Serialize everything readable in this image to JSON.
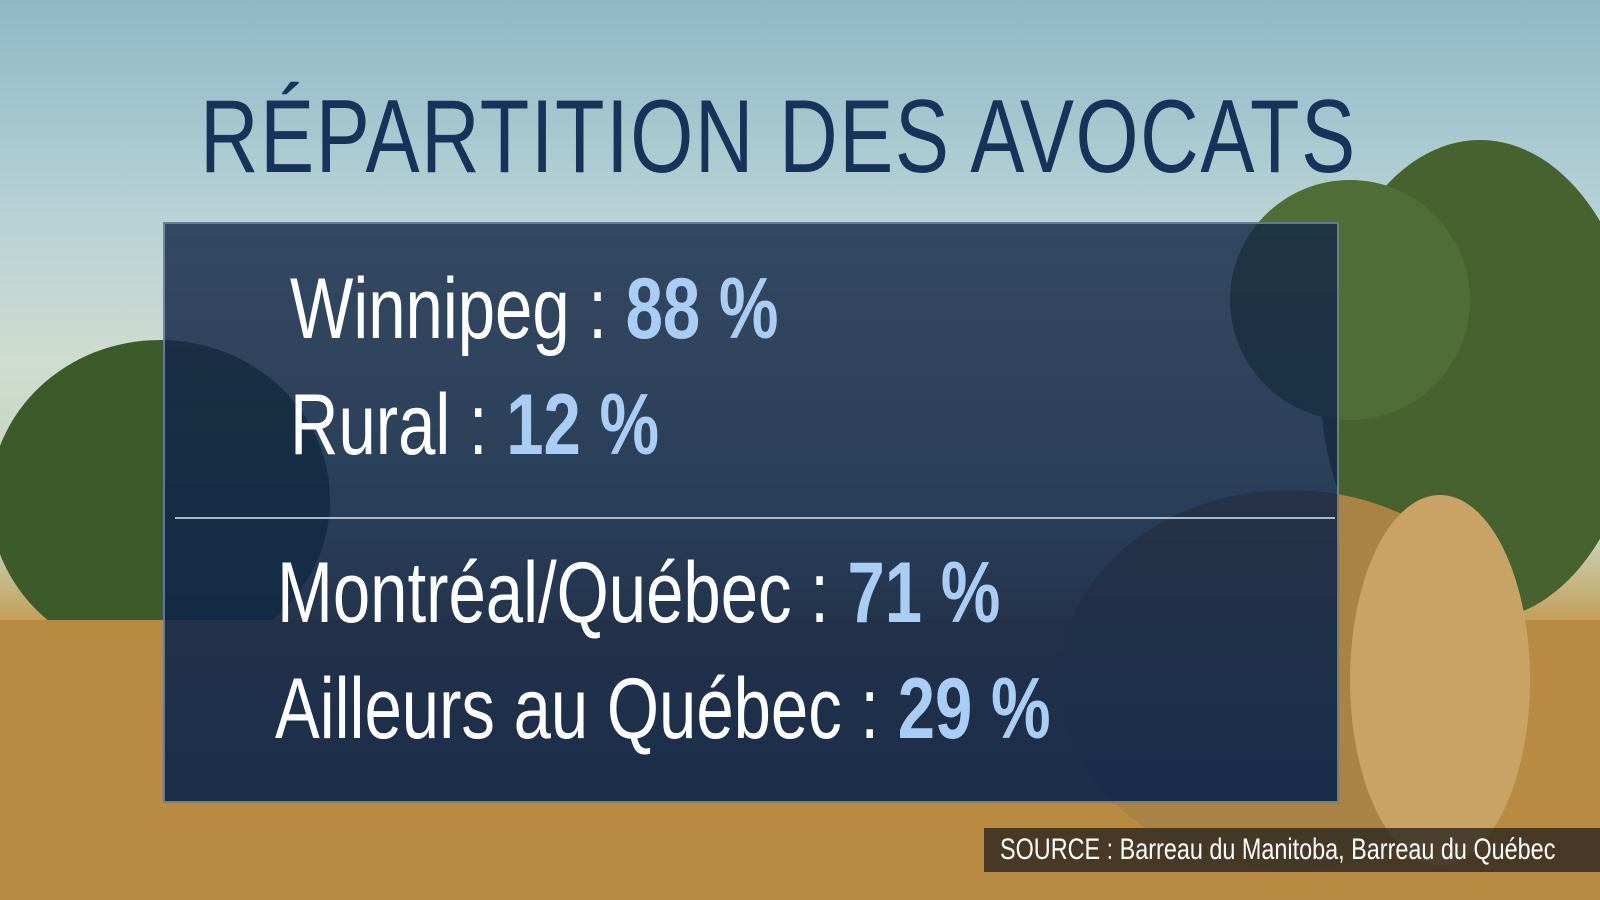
{
  "header": {
    "title": "RÉPARTITION DES AVOCATS"
  },
  "groups": [
    {
      "items": [
        {
          "label": "Winnipeg :",
          "value": "88 %"
        },
        {
          "label": "Rural :",
          "value": "12 %"
        }
      ]
    },
    {
      "items": [
        {
          "label": "Montréal/Québec :",
          "value": "71 %"
        },
        {
          "label": "Ailleurs au Québec :",
          "value": "29 %"
        }
      ]
    }
  ],
  "footer": {
    "source": "SOURCE : Barreau du Manitoba, Barreau du Québec"
  }
}
